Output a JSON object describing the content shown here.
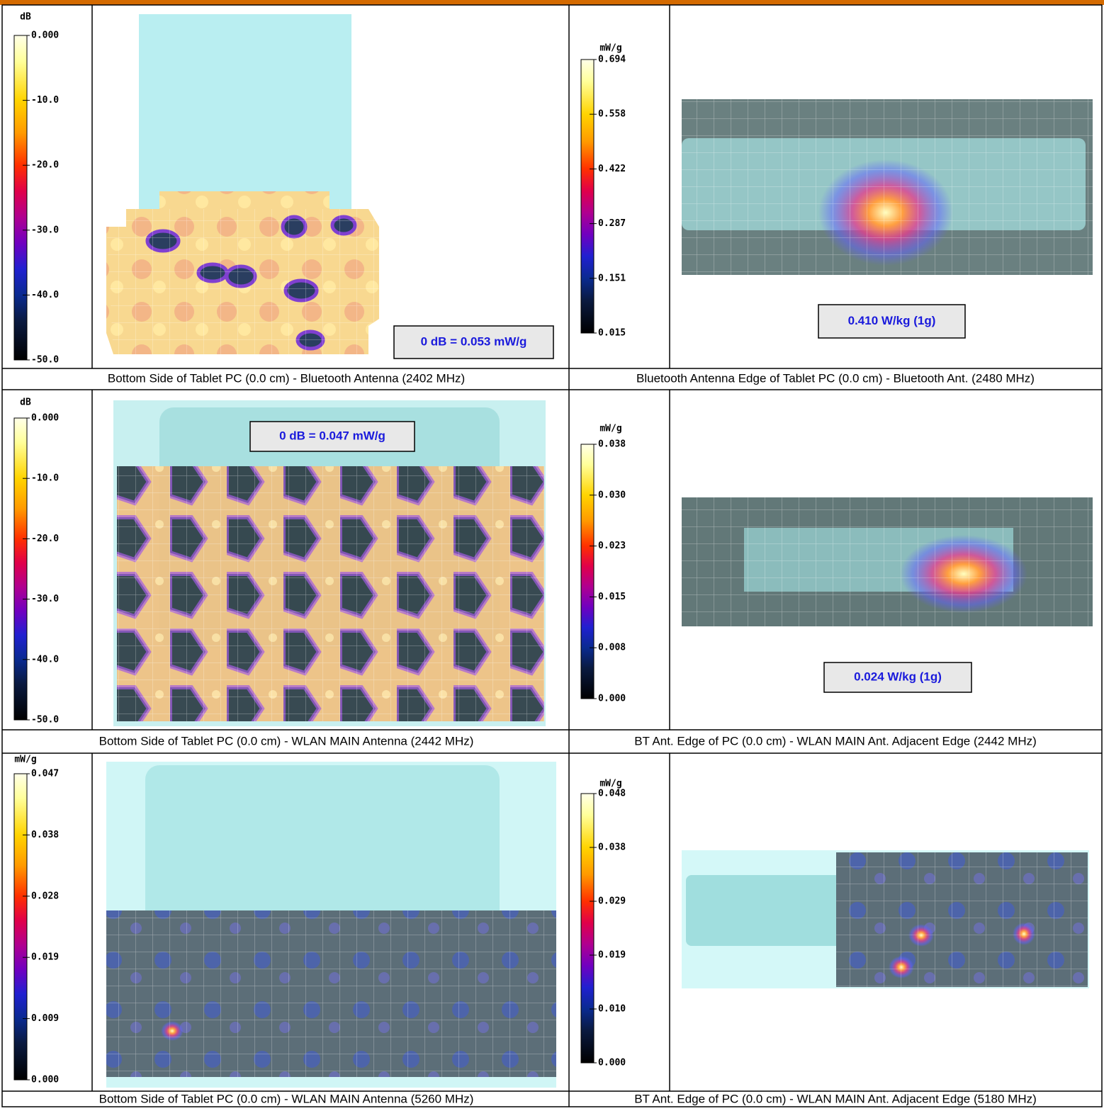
{
  "panels": [
    {
      "scale": {
        "unit": "dB",
        "ticks": [
          "0.000",
          "-10.0",
          "-20.0",
          "-30.0",
          "-40.0",
          "-50.0"
        ]
      },
      "result": "0 dB = 0.053 mW/g",
      "caption": "Bottom Side of Tablet PC (0.0 cm) - Bluetooth Antenna (2402 MHz)"
    },
    {
      "scale": {
        "unit": "mW/g",
        "ticks": [
          "0.694",
          "0.558",
          "0.422",
          "0.287",
          "0.151",
          "0.015"
        ]
      },
      "result": "0.410 W/kg (1g)",
      "caption": "Bluetooth Antenna Edge of Tablet PC (0.0 cm) - Bluetooth Ant. (2480 MHz)"
    },
    {
      "scale": {
        "unit": "dB",
        "ticks": [
          "0.000",
          "-10.0",
          "-20.0",
          "-30.0",
          "-40.0",
          "-50.0"
        ]
      },
      "result": "0 dB = 0.047 mW/g",
      "caption": "Bottom Side of Tablet PC (0.0 cm) - WLAN MAIN Antenna (2442 MHz)"
    },
    {
      "scale": {
        "unit": "mW/g",
        "ticks": [
          "0.038",
          "0.030",
          "0.023",
          "0.015",
          "0.008",
          "0.000"
        ]
      },
      "result": "0.024 W/kg (1g)",
      "caption": "BT Ant. Edge of PC (0.0 cm) - WLAN MAIN Ant. Adjacent Edge (2442 MHz)"
    },
    {
      "scale": {
        "unit": "mW/g",
        "ticks": [
          "0.047",
          "0.038",
          "0.028",
          "0.019",
          "0.009",
          "0.000"
        ]
      },
      "caption": "Bottom Side of Tablet PC (0.0 cm) - WLAN MAIN Antenna (5260 MHz)"
    },
    {
      "scale": {
        "unit": "mW/g",
        "ticks": [
          "0.048",
          "0.038",
          "0.029",
          "0.019",
          "0.010",
          "0.000"
        ]
      },
      "caption": "BT Ant. Edge of PC (0.0 cm) - WLAN MAIN Ant. Adjacent Edge (5180 MHz)"
    }
  ]
}
